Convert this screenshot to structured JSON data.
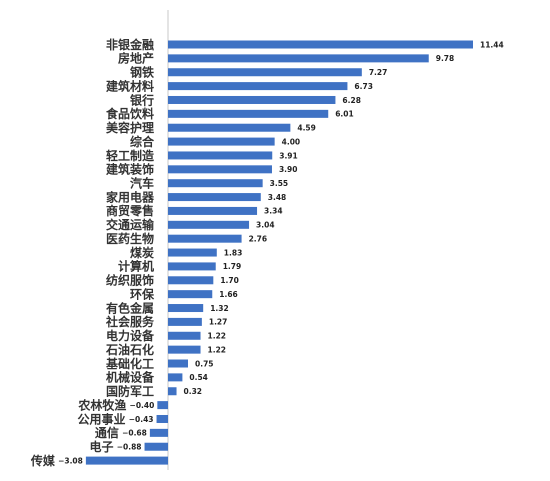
{
  "chart_data": {
    "type": "bar",
    "orientation": "horizontal",
    "title": "",
    "xlabel": "",
    "ylabel": "",
    "grid": false,
    "legend": "none",
    "bar_color": "#3f72c4",
    "axis_color": "#c8c8c8",
    "xlim": [
      -3.08,
      11.44
    ],
    "categories": [
      "非银金融",
      "房地产",
      "钢铁",
      "建筑材料",
      "银行",
      "食品饮料",
      "美容护理",
      "综合",
      "轻工制造",
      "建筑装饰",
      "汽车",
      "家用电器",
      "商贸零售",
      "交通运输",
      "医药生物",
      "煤炭",
      "计算机",
      "纺织服饰",
      "环保",
      "有色金属",
      "社会服务",
      "电力设备",
      "石油石化",
      "基础化工",
      "机械设备",
      "国防军工",
      "农林牧渔",
      "公用事业",
      "通信",
      "电子",
      "传媒"
    ],
    "values": [
      11.44,
      9.78,
      7.27,
      6.73,
      6.28,
      6.01,
      4.59,
      4.0,
      3.91,
      3.9,
      3.55,
      3.48,
      3.34,
      3.04,
      2.76,
      1.83,
      1.79,
      1.7,
      1.66,
      1.32,
      1.27,
      1.22,
      1.22,
      0.75,
      0.54,
      0.32,
      -0.4,
      -0.43,
      -0.68,
      -0.88,
      -3.08
    ],
    "value_labels": [
      "11.44",
      "9.78",
      "7.27",
      "6.73",
      "6.28",
      "6.01",
      "4.59",
      "4.00",
      "3.91",
      "3.90",
      "3.55",
      "3.48",
      "3.34",
      "3.04",
      "2.76",
      "1.83",
      "1.79",
      "1.70",
      "1.66",
      "1.32",
      "1.27",
      "1.22",
      "1.22",
      "0.75",
      "0.54",
      "0.32",
      "−0.40",
      "−0.43",
      "−0.68",
      "−0.88",
      "−3.08"
    ]
  }
}
